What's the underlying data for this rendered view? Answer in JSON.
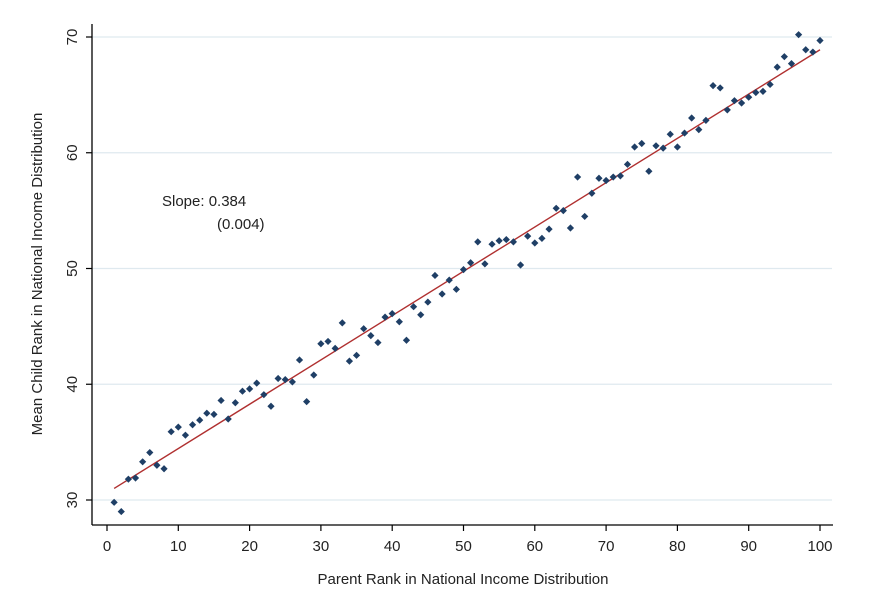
{
  "chart_data": {
    "type": "scatter",
    "xlabel": "Parent Rank in National Income Distribution",
    "ylabel": "Mean Child Rank in National Income Distribution",
    "xlim": [
      0,
      100
    ],
    "ylim": [
      29,
      71
    ],
    "xticks": [
      0,
      10,
      20,
      30,
      40,
      50,
      60,
      70,
      80,
      90,
      100
    ],
    "yticks": [
      30,
      40,
      50,
      60,
      70
    ],
    "grid": "horizontal",
    "annotation": {
      "line1": "Slope: 0.384",
      "line2": "(0.004)"
    },
    "fit_line": {
      "x": [
        1,
        100
      ],
      "y": [
        31.0,
        68.9
      ]
    },
    "colors": {
      "marker": "#1f3f66",
      "fit_line": "#b03030",
      "grid": "#dfe9ef",
      "axis": "#000000"
    },
    "points": [
      {
        "x": 1,
        "y": 29.8
      },
      {
        "x": 2,
        "y": 29.0
      },
      {
        "x": 3,
        "y": 31.8
      },
      {
        "x": 4,
        "y": 31.9
      },
      {
        "x": 5,
        "y": 33.3
      },
      {
        "x": 6,
        "y": 34.1
      },
      {
        "x": 7,
        "y": 33.0
      },
      {
        "x": 8,
        "y": 32.7
      },
      {
        "x": 9,
        "y": 35.9
      },
      {
        "x": 10,
        "y": 36.3
      },
      {
        "x": 11,
        "y": 35.6
      },
      {
        "x": 12,
        "y": 36.5
      },
      {
        "x": 13,
        "y": 36.9
      },
      {
        "x": 14,
        "y": 37.5
      },
      {
        "x": 15,
        "y": 37.4
      },
      {
        "x": 16,
        "y": 38.6
      },
      {
        "x": 17,
        "y": 37.0
      },
      {
        "x": 18,
        "y": 38.4
      },
      {
        "x": 19,
        "y": 39.4
      },
      {
        "x": 20,
        "y": 39.6
      },
      {
        "x": 21,
        "y": 40.1
      },
      {
        "x": 22,
        "y": 39.1
      },
      {
        "x": 23,
        "y": 38.1
      },
      {
        "x": 24,
        "y": 40.5
      },
      {
        "x": 25,
        "y": 40.4
      },
      {
        "x": 26,
        "y": 40.2
      },
      {
        "x": 27,
        "y": 42.1
      },
      {
        "x": 28,
        "y": 38.5
      },
      {
        "x": 29,
        "y": 40.8
      },
      {
        "x": 30,
        "y": 43.5
      },
      {
        "x": 31,
        "y": 43.7
      },
      {
        "x": 32,
        "y": 43.1
      },
      {
        "x": 33,
        "y": 45.3
      },
      {
        "x": 34,
        "y": 42.0
      },
      {
        "x": 35,
        "y": 42.5
      },
      {
        "x": 36,
        "y": 44.8
      },
      {
        "x": 37,
        "y": 44.2
      },
      {
        "x": 38,
        "y": 43.6
      },
      {
        "x": 39,
        "y": 45.8
      },
      {
        "x": 40,
        "y": 46.1
      },
      {
        "x": 41,
        "y": 45.4
      },
      {
        "x": 42,
        "y": 43.8
      },
      {
        "x": 43,
        "y": 46.7
      },
      {
        "x": 44,
        "y": 46.0
      },
      {
        "x": 45,
        "y": 47.1
      },
      {
        "x": 46,
        "y": 49.4
      },
      {
        "x": 47,
        "y": 47.8
      },
      {
        "x": 48,
        "y": 49.0
      },
      {
        "x": 49,
        "y": 48.2
      },
      {
        "x": 50,
        "y": 49.9
      },
      {
        "x": 51,
        "y": 50.5
      },
      {
        "x": 52,
        "y": 52.3
      },
      {
        "x": 53,
        "y": 50.4
      },
      {
        "x": 54,
        "y": 52.1
      },
      {
        "x": 55,
        "y": 52.4
      },
      {
        "x": 56,
        "y": 52.5
      },
      {
        "x": 57,
        "y": 52.3
      },
      {
        "x": 58,
        "y": 50.3
      },
      {
        "x": 59,
        "y": 52.8
      },
      {
        "x": 60,
        "y": 52.2
      },
      {
        "x": 61,
        "y": 52.6
      },
      {
        "x": 62,
        "y": 53.4
      },
      {
        "x": 63,
        "y": 55.2
      },
      {
        "x": 64,
        "y": 55.0
      },
      {
        "x": 65,
        "y": 53.5
      },
      {
        "x": 66,
        "y": 57.9
      },
      {
        "x": 67,
        "y": 54.5
      },
      {
        "x": 68,
        "y": 56.5
      },
      {
        "x": 69,
        "y": 57.8
      },
      {
        "x": 70,
        "y": 57.6
      },
      {
        "x": 71,
        "y": 57.9
      },
      {
        "x": 72,
        "y": 58.0
      },
      {
        "x": 73,
        "y": 59.0
      },
      {
        "x": 74,
        "y": 60.5
      },
      {
        "x": 75,
        "y": 60.8
      },
      {
        "x": 76,
        "y": 58.4
      },
      {
        "x": 77,
        "y": 60.6
      },
      {
        "x": 78,
        "y": 60.4
      },
      {
        "x": 79,
        "y": 61.6
      },
      {
        "x": 80,
        "y": 60.5
      },
      {
        "x": 81,
        "y": 61.7
      },
      {
        "x": 82,
        "y": 63.0
      },
      {
        "x": 83,
        "y": 62.0
      },
      {
        "x": 84,
        "y": 62.8
      },
      {
        "x": 85,
        "y": 65.8
      },
      {
        "x": 86,
        "y": 65.6
      },
      {
        "x": 87,
        "y": 63.7
      },
      {
        "x": 88,
        "y": 64.5
      },
      {
        "x": 89,
        "y": 64.3
      },
      {
        "x": 90,
        "y": 64.8
      },
      {
        "x": 91,
        "y": 65.2
      },
      {
        "x": 92,
        "y": 65.3
      },
      {
        "x": 93,
        "y": 65.9
      },
      {
        "x": 94,
        "y": 67.4
      },
      {
        "x": 95,
        "y": 68.3
      },
      {
        "x": 96,
        "y": 67.7
      },
      {
        "x": 97,
        "y": 70.2
      },
      {
        "x": 98,
        "y": 68.9
      },
      {
        "x": 99,
        "y": 68.7
      },
      {
        "x": 100,
        "y": 69.7
      }
    ]
  }
}
